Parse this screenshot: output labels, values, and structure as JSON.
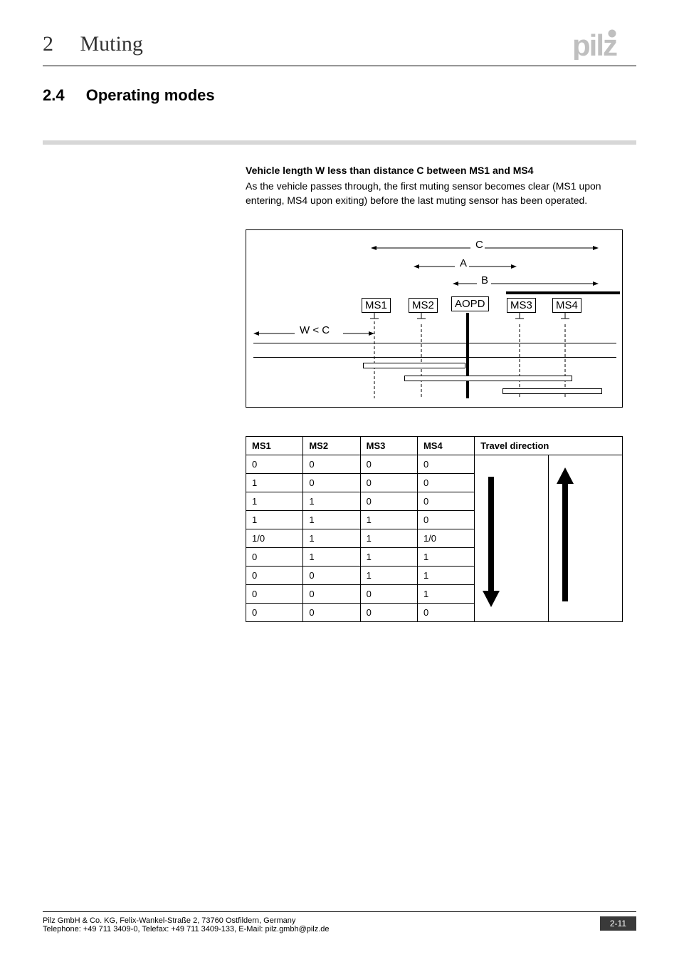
{
  "header": {
    "chapter_number": "2",
    "chapter_title": "Muting",
    "logo_text": "pilz",
    "logo_color": "#bfbfbf"
  },
  "section": {
    "number": "2.4",
    "title": "Operating modes"
  },
  "body": {
    "subheading": "Vehicle length W less than distance C between MS1 and MS4",
    "paragraph": "As the vehicle passes through, the first muting sensor becomes clear (MS1 upon entering, MS4 upon exiting) before the last muting sensor has been operated."
  },
  "diagram": {
    "labels": {
      "C": "C",
      "A": "A",
      "B": "B",
      "W": "W < C"
    },
    "sensors": [
      "MS1",
      "MS2",
      "AOPD",
      "MS3",
      "MS4"
    ],
    "border_color": "#000000",
    "background": "#ffffff"
  },
  "table": {
    "columns": [
      "MS1",
      "MS2",
      "MS3",
      "MS4",
      "Travel direction"
    ],
    "rows": [
      [
        "0",
        "0",
        "0",
        "0"
      ],
      [
        "1",
        "0",
        "0",
        "0"
      ],
      [
        "1",
        "1",
        "0",
        "0"
      ],
      [
        "1",
        "1",
        "1",
        "0"
      ],
      [
        "1/0",
        "1",
        "1",
        "1/0"
      ],
      [
        "0",
        "1",
        "1",
        "1"
      ],
      [
        "0",
        "0",
        "1",
        "1"
      ],
      [
        "0",
        "0",
        "0",
        "1"
      ],
      [
        "0",
        "0",
        "0",
        "0"
      ]
    ],
    "border_color": "#000000",
    "arrow_color": "#000000"
  },
  "footer": {
    "line1": "Pilz GmbH & Co. KG, Felix-Wankel-Straße 2, 73760 Ostfildern, Germany",
    "line2": "Telephone: +49 711 3409-0, Telefax: +49 711 3409-133, E-Mail: pilz.gmbh@pilz.de",
    "page": "2-11",
    "badge_bg": "#3a3a3a",
    "badge_fg": "#ffffff"
  },
  "colors": {
    "gray_bar": "#d7d7d7",
    "text": "#000000"
  }
}
